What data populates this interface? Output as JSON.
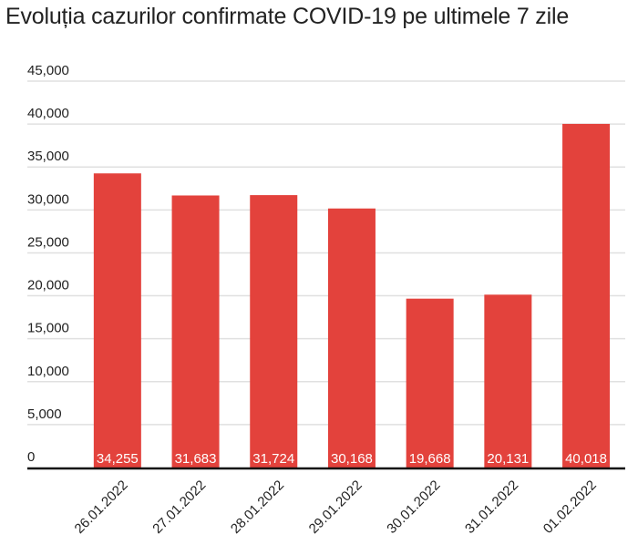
{
  "chart_data": {
    "type": "bar",
    "title": "Evoluția cazurilor confirmate COVID-19 pe ultimele 7 zile",
    "categories": [
      "26.01.2022",
      "27.01.2022",
      "28.01.2022",
      "29.01.2022",
      "30.01.2022",
      "31.01.2022",
      "01.02.2022"
    ],
    "values": [
      34255,
      31683,
      31724,
      30168,
      19668,
      20131,
      40018
    ],
    "data_labels": [
      "34,255",
      "31,683",
      "31,724",
      "30,168",
      "19,668",
      "20,131",
      "40,018"
    ],
    "yticks": [
      0,
      5000,
      10000,
      15000,
      20000,
      25000,
      30000,
      35000,
      40000,
      45000
    ],
    "ytick_labels": [
      "0",
      "5,000",
      "10,000",
      "15,000",
      "20,000",
      "25,000",
      "30,000",
      "35,000",
      "40,000",
      "45,000"
    ],
    "ylim": [
      0,
      45000
    ],
    "xlabel": "",
    "ylabel": "",
    "grid": true,
    "bar_color": "#e3423c"
  }
}
